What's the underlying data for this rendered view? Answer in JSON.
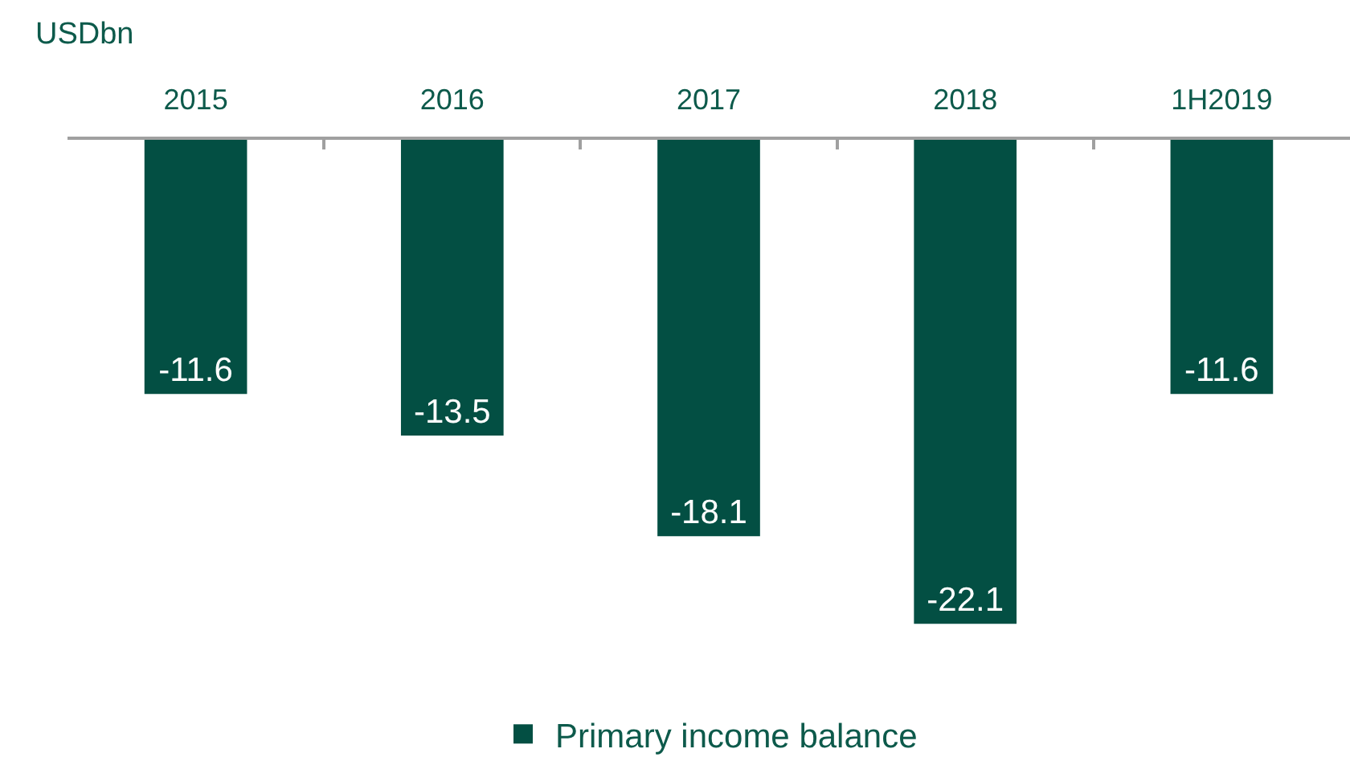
{
  "chart_data": {
    "type": "bar",
    "ylabel": "USDbn",
    "categories": [
      "2015",
      "2016",
      "2017",
      "2018",
      "1H2019"
    ],
    "series": [
      {
        "name": "Primary income balance",
        "color": "#034f43",
        "values": [
          -11.6,
          -13.5,
          -18.1,
          -22.1,
          -11.6
        ]
      }
    ],
    "data_labels": true,
    "legend": "bottom"
  }
}
